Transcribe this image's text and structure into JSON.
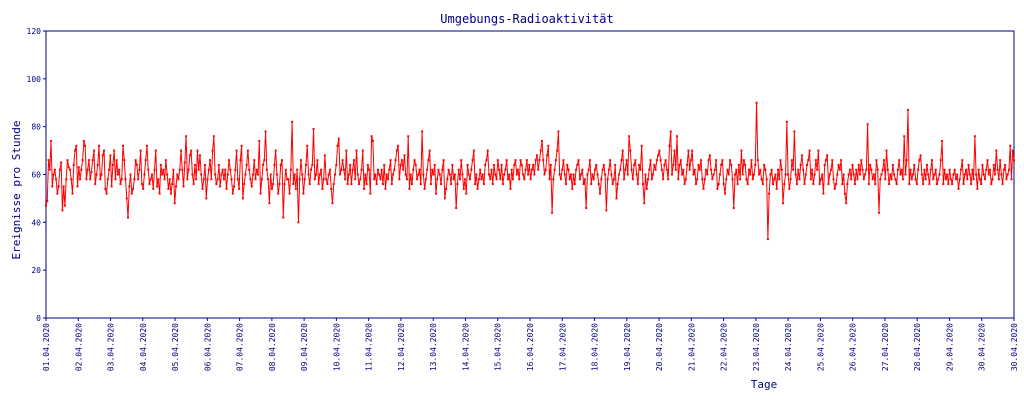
{
  "chart_data": {
    "type": "line",
    "title": "Umgebungs-Radioaktivität",
    "xlabel": "Tage",
    "ylabel": "Ereignisse pro Stunde",
    "ylim": [
      0,
      120
    ],
    "y_ticks": [
      "0",
      "20",
      "40",
      "60",
      "80",
      "100",
      "120"
    ],
    "x_ticks": [
      "01.04.2020",
      "02.04.2020",
      "03.04.2020",
      "04.04.2020",
      "05.04.2020",
      "06.04.2020",
      "07.04.2020",
      "08.04.2020",
      "09.04.2020",
      "10.04.2020",
      "11.04.2020",
      "12.04.2020",
      "13.04.2020",
      "14.04.2020",
      "15.04.2020",
      "16.04.2020",
      "17.04.2020",
      "18.04.2020",
      "19.04.2020",
      "20.04.2020",
      "21.04.2020",
      "22.04.2020",
      "23.04.2020",
      "24.04.2020",
      "25.04.2020",
      "26.04.2020",
      "27.04.2020",
      "28.04.2020",
      "29.04.2020",
      "30.04.2020",
      "30.04.2020"
    ],
    "grid": false,
    "colors": {
      "series": "#ff0000",
      "axes": "#000080",
      "text": "#000080"
    },
    "series": [
      {
        "values_per": "hour",
        "values": [
          47,
          49,
          66,
          62,
          74,
          55,
          60,
          62,
          58,
          52,
          55,
          62,
          65,
          45,
          55,
          47,
          58,
          66,
          63,
          62,
          58,
          52,
          64,
          70,
          72,
          55,
          63,
          58,
          62,
          66,
          74,
          72,
          58,
          62,
          66,
          58,
          61,
          66,
          70,
          56,
          60,
          64,
          72,
          58,
          60,
          68,
          70,
          54,
          52,
          58,
          62,
          68,
          55,
          64,
          70,
          58,
          66,
          60,
          62,
          56,
          58,
          72,
          66,
          58,
          50,
          42,
          55,
          60,
          52,
          54,
          58,
          66,
          64,
          58,
          62,
          70,
          56,
          54,
          60,
          66,
          72,
          62,
          56,
          58,
          60,
          54,
          62,
          70,
          55,
          58,
          52,
          64,
          60,
          62,
          58,
          66,
          60,
          54,
          58,
          52,
          56,
          62,
          48,
          55,
          60,
          58,
          62,
          70,
          62,
          55,
          65,
          76,
          58,
          62,
          68,
          70,
          60,
          56,
          64,
          58,
          70,
          62,
          68,
          60,
          54,
          58,
          64,
          50,
          58,
          62,
          66,
          58,
          70,
          76,
          60,
          56,
          58,
          64,
          55,
          60,
          62,
          58,
          62,
          54,
          60,
          66,
          62,
          58,
          52,
          55,
          62,
          70,
          58,
          54,
          66,
          72,
          50,
          56,
          60,
          64,
          70,
          62,
          58,
          55,
          60,
          66,
          58,
          62,
          60,
          74,
          52,
          58,
          64,
          66,
          78,
          62,
          58,
          48,
          60,
          54,
          56,
          64,
          70,
          60,
          52,
          56,
          64,
          66,
          42,
          56,
          62,
          58,
          58,
          52,
          62,
          82,
          56,
          60,
          54,
          62,
          40,
          58,
          66,
          60,
          52,
          58,
          64,
          72,
          60,
          56,
          62,
          64,
          79,
          58,
          60,
          66,
          56,
          60,
          62,
          54,
          58,
          68,
          58,
          56,
          60,
          62,
          54,
          48,
          56,
          60,
          64,
          72,
          75,
          60,
          62,
          66,
          62,
          58,
          70,
          56,
          60,
          64,
          56,
          62,
          66,
          58,
          70,
          60,
          56,
          58,
          62,
          70,
          54,
          60,
          56,
          64,
          62,
          52,
          76,
          74,
          58,
          60,
          56,
          62,
          60,
          58,
          62,
          56,
          64,
          54,
          60,
          58,
          62,
          66,
          56,
          60,
          62,
          66,
          70,
          72,
          58,
          64,
          66,
          62,
          68,
          60,
          58,
          76,
          54,
          60,
          56,
          62,
          66,
          64,
          58,
          60,
          62,
          56,
          78,
          60,
          54,
          58,
          62,
          66,
          70,
          56,
          62,
          60,
          64,
          52,
          58,
          62,
          60,
          56,
          62,
          66,
          50,
          54,
          58,
          62,
          60,
          56,
          64,
          58,
          60,
          46,
          56,
          62,
          58,
          66,
          60,
          54,
          58,
          52,
          64,
          60,
          58,
          62,
          66,
          70,
          56,
          60,
          54,
          58,
          62,
          58,
          60,
          56,
          64,
          66,
          70,
          60,
          58,
          62,
          56,
          64,
          60,
          58,
          66,
          62,
          58,
          64,
          56,
          60,
          62,
          66,
          58,
          60,
          54,
          62,
          58,
          64,
          66,
          60,
          62,
          58,
          66,
          64,
          60,
          58,
          62,
          66,
          60,
          64,
          58,
          62,
          64,
          60,
          66,
          68,
          62,
          66,
          70,
          74,
          66,
          60,
          62,
          68,
          72,
          58,
          64,
          44,
          58,
          62,
          66,
          70,
          78,
          60,
          58,
          62,
          66,
          60,
          56,
          64,
          62,
          58,
          60,
          54,
          60,
          56,
          62,
          64,
          66,
          58,
          60,
          62,
          56,
          58,
          46,
          60,
          62,
          66,
          56,
          60,
          58,
          62,
          64,
          60,
          56,
          52,
          58,
          62,
          64,
          60,
          45,
          58,
          62,
          66,
          60,
          56,
          58,
          64,
          50,
          56,
          60,
          62,
          66,
          70,
          58,
          62,
          66,
          60,
          76,
          70,
          62,
          58,
          64,
          66,
          60,
          56,
          64,
          62,
          72,
          56,
          48,
          60,
          54,
          58,
          62,
          66,
          58,
          60,
          64,
          62,
          66,
          68,
          70,
          66,
          62,
          58,
          64,
          66,
          62,
          58,
          72,
          78,
          60,
          64,
          70,
          62,
          76,
          58,
          64,
          66,
          60,
          62,
          56,
          58,
          64,
          70,
          62,
          66,
          70,
          60,
          62,
          56,
          58,
          64,
          62,
          66,
          58,
          54,
          58,
          62,
          60,
          66,
          68,
          62,
          58,
          60,
          62,
          66,
          54,
          56,
          60,
          64,
          66,
          56,
          52,
          58,
          62,
          60,
          66,
          64,
          58,
          46,
          60,
          62,
          56,
          64,
          58,
          70,
          60,
          66,
          64,
          58,
          56,
          62,
          60,
          66,
          58,
          60,
          64,
          90,
          66,
          60,
          62,
          58,
          56,
          64,
          62,
          58,
          33,
          52,
          60,
          62,
          56,
          58,
          60,
          54,
          62,
          58,
          66,
          62,
          48,
          56,
          60,
          82,
          60,
          54,
          58,
          66,
          62,
          78,
          60,
          56,
          62,
          58,
          64,
          68,
          62,
          56,
          60,
          64,
          66,
          70,
          58,
          62,
          56,
          60,
          66,
          62,
          70,
          56,
          58,
          60,
          52,
          64,
          66,
          68,
          56,
          60,
          62,
          66,
          58,
          54,
          56,
          60,
          64,
          62,
          66,
          56,
          60,
          52,
          48,
          56,
          60,
          62,
          58,
          64,
          60,
          56,
          62,
          58,
          64,
          60,
          66,
          62,
          58,
          60,
          62,
          81,
          56,
          64,
          62,
          58,
          60,
          56,
          66,
          62,
          44,
          58,
          60,
          62,
          66,
          58,
          70,
          62,
          56,
          60,
          58,
          64,
          60,
          58,
          56,
          62,
          66,
          60,
          62,
          58,
          76,
          60,
          66,
          87,
          56,
          62,
          58,
          60,
          64,
          58,
          56,
          62,
          66,
          68,
          60,
          56,
          62,
          58,
          64,
          60,
          56,
          62,
          66,
          58,
          60,
          62,
          56,
          58,
          60,
          66,
          74,
          56,
          62,
          58,
          60,
          56,
          62,
          58,
          56,
          60,
          62,
          58,
          60,
          54,
          58,
          62,
          66,
          56,
          60,
          62,
          58,
          64,
          60,
          56,
          62,
          58,
          76,
          60,
          54,
          62,
          58,
          56,
          64,
          60,
          58,
          62,
          66,
          60,
          62,
          56,
          58,
          64,
          60,
          70,
          62,
          58,
          66,
          60,
          56,
          62,
          64,
          58,
          60,
          62,
          72,
          58,
          70,
          66
        ]
      }
    ]
  }
}
